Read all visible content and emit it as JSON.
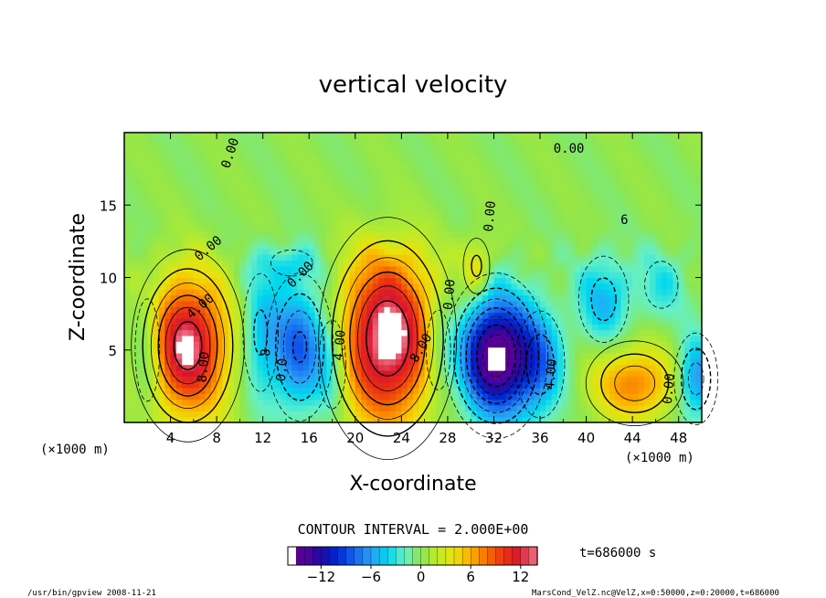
{
  "chart_data": {
    "type": "heatmap",
    "title": "vertical velocity",
    "xlabel": "X-coordinate",
    "ylabel": "Z-coordinate",
    "x_unit": "(×1000 m)",
    "y_unit": "(×1000 m)",
    "xlim": [
      0,
      50
    ],
    "ylim": [
      0,
      20
    ],
    "x_ticks": [
      4,
      8,
      12,
      16,
      20,
      24,
      28,
      32,
      36,
      40,
      44,
      48
    ],
    "y_ticks": [
      5,
      10,
      15
    ],
    "contour_interval_text": "CONTOUR INTERVAL = 2.000E+00",
    "time_text": "t=686000 s",
    "colorbar": {
      "min": -16,
      "max": 14,
      "ticks": [
        -12,
        -6,
        0,
        6,
        12
      ]
    },
    "contour_labels": [
      {
        "text": "0.00",
        "x": 9.5,
        "z": 18.5,
        "rot": -72
      },
      {
        "text": "0.00",
        "x": 38.5,
        "z": 18.6,
        "rot": 0
      },
      {
        "text": "0.00",
        "x": 7.5,
        "z": 11.8,
        "rot": -40
      },
      {
        "text": "0.00",
        "x": 15.5,
        "z": 10.0,
        "rot": -45
      },
      {
        "text": "0.00",
        "x": 28.5,
        "z": 8.8,
        "rot": -85
      },
      {
        "text": "0.00",
        "x": 32.0,
        "z": 14.2,
        "rot": -85
      },
      {
        "text": "0.00",
        "x": 47.5,
        "z": 2.3,
        "rot": -85
      },
      {
        "text": "0.0",
        "x": 14.0,
        "z": 3.6,
        "rot": -85
      },
      {
        "text": "4.00",
        "x": 6.8,
        "z": 7.8,
        "rot": -40
      },
      {
        "text": "4.00",
        "x": 19.0,
        "z": 5.3,
        "rot": -85
      },
      {
        "text": "4.00",
        "x": 37.3,
        "z": 3.3,
        "rot": -85
      },
      {
        "text": "6",
        "x": 43.3,
        "z": 13.7,
        "rot": 0
      },
      {
        "text": "8",
        "x": 12.6,
        "z": 4.8,
        "rot": -85
      },
      {
        "text": "8.00",
        "x": 26.0,
        "z": 5.0,
        "rot": -60
      },
      {
        "text": "8.00",
        "x": 7.2,
        "z": 3.8,
        "rot": -85
      }
    ],
    "features": [
      {
        "x": 5.5,
        "z": 5.3,
        "amp": 13.5,
        "sx": 2.5,
        "sz": 3.4
      },
      {
        "x": 22.8,
        "z": 5.8,
        "amp": 14.5,
        "sx": 3.0,
        "sz": 4.2
      },
      {
        "x": 32.2,
        "z": 4.6,
        "amp": -16.0,
        "sx": 2.2,
        "sz": 2.8
      },
      {
        "x": 15.2,
        "z": 5.2,
        "amp": -8.5,
        "sx": 1.7,
        "sz": 3.0
      },
      {
        "x": 11.8,
        "z": 6.2,
        "amp": -4.5,
        "sx": 1.2,
        "sz": 3.2
      },
      {
        "x": 44.2,
        "z": 2.7,
        "amp": 7.5,
        "sx": 2.6,
        "sz": 1.8
      },
      {
        "x": 41.5,
        "z": 8.5,
        "amp": -5.0,
        "sx": 1.6,
        "sz": 2.2
      },
      {
        "x": 36.0,
        "z": 4.0,
        "amp": -5.5,
        "sx": 1.5,
        "sz": 2.6
      },
      {
        "x": 49.5,
        "z": 3.0,
        "amp": -7.0,
        "sx": 1.2,
        "sz": 2.0
      },
      {
        "x": 30.5,
        "z": 10.8,
        "amp": 4.5,
        "sx": 0.9,
        "sz": 1.5
      },
      {
        "x": 2.0,
        "z": 5.0,
        "amp": -4.0,
        "sx": 0.9,
        "sz": 3.0
      },
      {
        "x": 18.0,
        "z": 4.0,
        "amp": -4.0,
        "sx": 1.0,
        "sz": 2.6
      },
      {
        "x": 27.2,
        "z": 5.0,
        "amp": -3.5,
        "sx": 1.0,
        "sz": 2.6
      },
      {
        "x": 46.5,
        "z": 9.5,
        "amp": -3.0,
        "sx": 1.6,
        "sz": 1.8
      },
      {
        "x": 14.5,
        "z": 11.0,
        "amp": -3.0,
        "sx": 2.0,
        "sz": 1.0
      }
    ]
  },
  "footer": {
    "left": "/usr/bin/gpview   2008-11-21",
    "right": "MarsCond_VelZ.nc@VelZ,x=0:50000,z=0:20000,t=686000"
  }
}
